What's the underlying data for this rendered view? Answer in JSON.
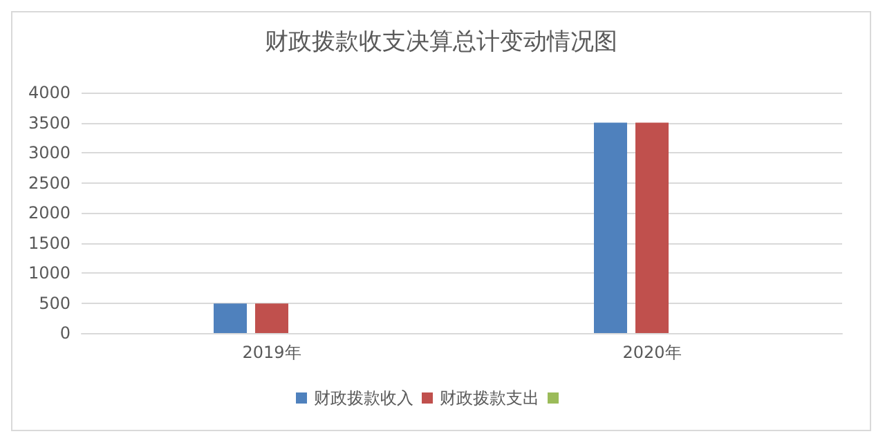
{
  "chart_data": {
    "type": "bar",
    "title": "财政拨款收支决算总计变动情况图",
    "categories": [
      "2019年",
      "2020年"
    ],
    "series": [
      {
        "name": "财政拨款收入",
        "color": "#4f81bd",
        "values": [
          490,
          3500
        ]
      },
      {
        "name": "财政拨款支出",
        "color": "#c0504d",
        "values": [
          490,
          3500
        ]
      },
      {
        "color": "#9bbb59",
        "values": [
          null,
          null
        ]
      }
    ],
    "ylim": [
      0,
      4000
    ],
    "yticks": [
      0,
      500,
      1000,
      1500,
      2000,
      2500,
      3000,
      3500,
      4000
    ],
    "grid": "y",
    "legend": "bottom"
  }
}
